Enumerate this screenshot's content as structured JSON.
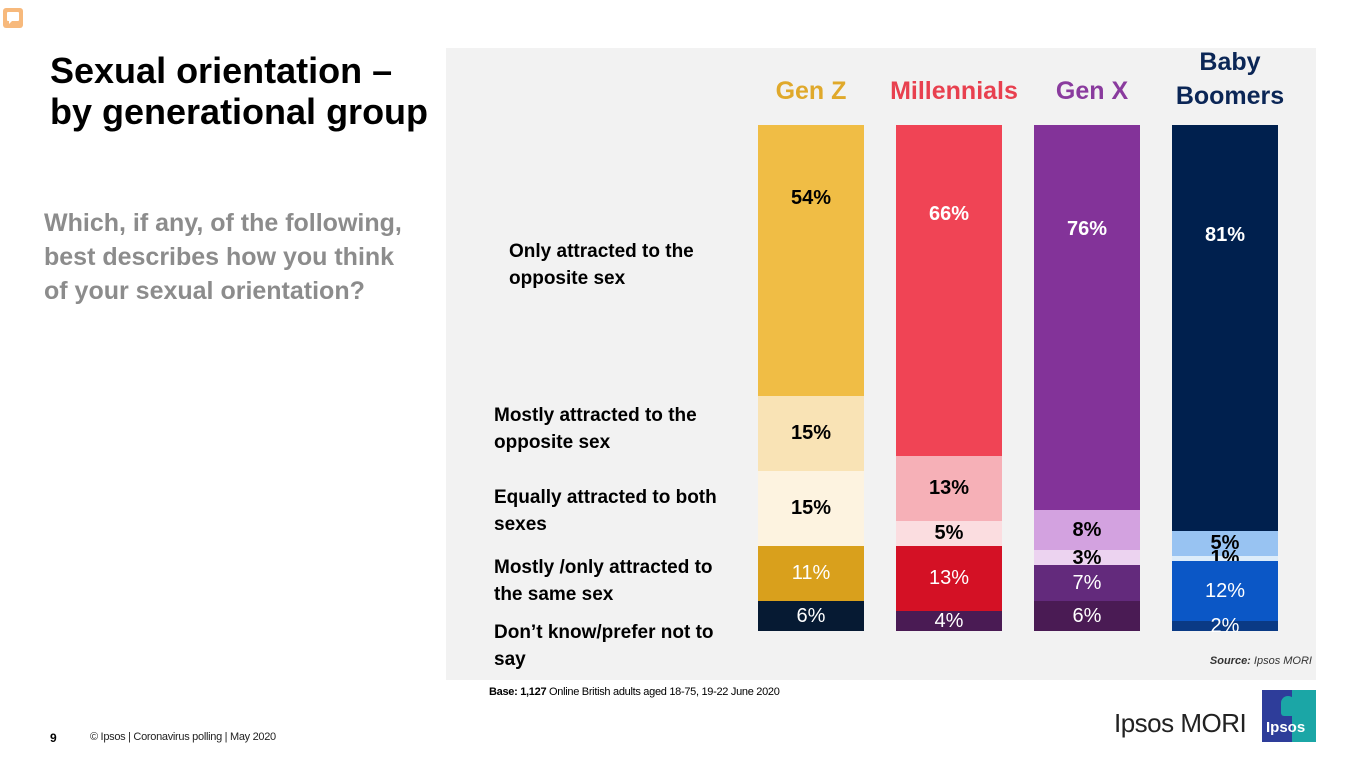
{
  "slide": {
    "title": "Sexual orientation – by generational group",
    "question": "Which, if any, of the following, best describes how you think of your sexual orientation?",
    "source_label": "Source:",
    "source_value": "Ipsos MORI",
    "base_label": "Base:",
    "base_value": "1,127",
    "base_text": "Online British adults aged 18-75, 19-22 June 2020",
    "page_number": "9",
    "footer": "© Ipsos | Coronavirus polling | May 2020",
    "logo_text": "Ipsos MORI",
    "logo_badge": "Ipsos"
  },
  "chart_data": {
    "type": "bar",
    "stacked": true,
    "orientation": "vertical",
    "title": "Sexual orientation – by generational group",
    "xlabel": "",
    "ylabel": "",
    "unit": "%",
    "categories": [
      "Gen Z",
      "Millennials",
      "Gen X",
      "Baby Boomers"
    ],
    "category_colors": [
      "#e0a92b",
      "#e8404f",
      "#8a3b9e",
      "#0b2656"
    ],
    "series": [
      {
        "name": "Only attracted to the opposite sex",
        "values": [
          54,
          66,
          76,
          81
        ],
        "colors": [
          "#f0bd45",
          "#f04455",
          "#833399",
          "#00204e"
        ],
        "label_colors": [
          "#000000",
          "#ffffff",
          "#ffffff",
          "#ffffff"
        ]
      },
      {
        "name": "Mostly attracted to the opposite sex",
        "values": [
          15,
          13,
          8,
          5
        ],
        "colors": [
          "#f9e3b5",
          "#f6b0b7",
          "#d3a2e0",
          "#98c3f2"
        ],
        "label_colors": [
          "#000000",
          "#000000",
          "#000000",
          "#000000"
        ]
      },
      {
        "name": "Equally attracted to both sexes",
        "values": [
          15,
          5,
          3,
          1
        ],
        "colors": [
          "#fdf3e0",
          "#fbdde0",
          "#ecd3f0",
          "#dcecfa"
        ],
        "label_colors": [
          "#000000",
          "#000000",
          "#000000",
          "#000000"
        ]
      },
      {
        "name": "Mostly /only attracted to the same sex",
        "values": [
          11,
          13,
          7,
          12
        ],
        "colors": [
          "#d9a01c",
          "#d41125",
          "#632a7c",
          "#0b57c6"
        ],
        "label_colors": [
          "#ffffff",
          "#ffffff",
          "#ffffff",
          "#ffffff"
        ]
      },
      {
        "name": "Don’t know/prefer not to say",
        "values": [
          6,
          4,
          6,
          2
        ],
        "colors": [
          "#061a33",
          "#4a1b54",
          "#4a1b54",
          "#0a3a85"
        ],
        "label_colors": [
          "#ffffff",
          "#ffffff",
          "#ffffff",
          "#ffffff"
        ]
      }
    ],
    "legend": "left"
  }
}
